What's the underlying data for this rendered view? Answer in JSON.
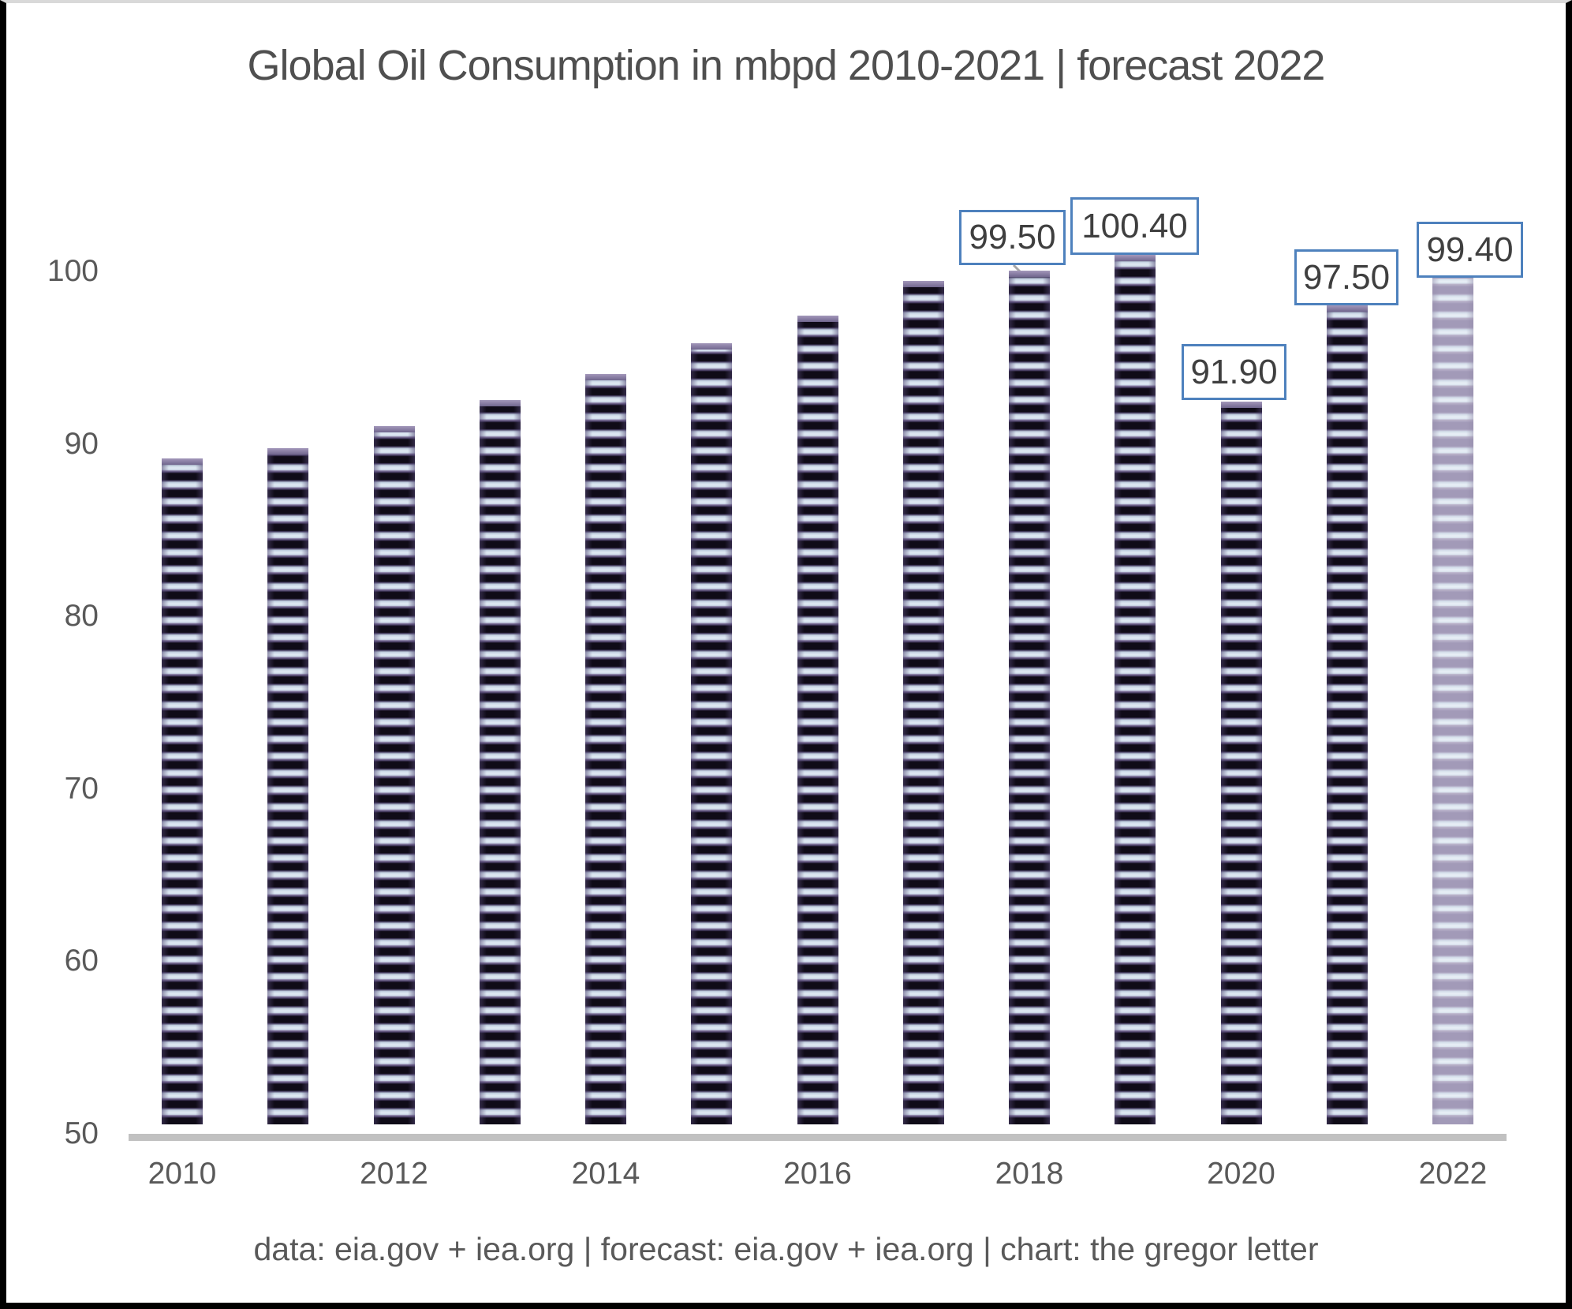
{
  "title": "Global Oil Consumption in mbpd 2010-2021 | forecast 2022",
  "footer": "data: eia.gov + iea.org | forecast: eia.gov + iea.org | chart: the gregor letter",
  "chart_data": {
    "type": "bar",
    "title": "Global Oil Consumption in mbpd 2010-2021 | forecast 2022",
    "xlabel": "",
    "ylabel": "",
    "x": [
      "2010",
      "2011",
      "2012",
      "2013",
      "2014",
      "2015",
      "2016",
      "2017",
      "2018",
      "2019",
      "2020",
      "2021",
      "2022"
    ],
    "values": [
      88.6,
      89.2,
      90.5,
      92.0,
      93.5,
      95.3,
      96.9,
      98.9,
      99.5,
      100.4,
      91.9,
      97.5,
      99.4
    ],
    "forecast_years": [
      "2022"
    ],
    "data_labels": [
      {
        "year": "2018",
        "text": "99.50"
      },
      {
        "year": "2019",
        "text": "100.40"
      },
      {
        "year": "2020",
        "text": "91.90"
      },
      {
        "year": "2021",
        "text": "97.50"
      },
      {
        "year": "2022",
        "text": "99.40"
      }
    ],
    "ylim": [
      50,
      100
    ],
    "y_ticks": [
      50,
      60,
      70,
      80,
      90,
      100
    ],
    "x_tick_labels": [
      "2010",
      "2012",
      "2014",
      "2016",
      "2018",
      "2020",
      "2022"
    ],
    "grid": false,
    "legend": null
  },
  "colors": {
    "callout_border": "#4e81bd",
    "text_gray": "#595959",
    "title_gray": "#4f4f4f",
    "axis_line": "#c1c1c1",
    "bar_stripe_dark": "#0f0b17",
    "bar_stripe_light": "#dfe9f2",
    "bar_stripe_purple": "#8e83a9",
    "forecast_stripe_dark": "#a29ab8",
    "forecast_stripe_light": "#e8eff6",
    "leader_line": "#a6a6a6"
  }
}
